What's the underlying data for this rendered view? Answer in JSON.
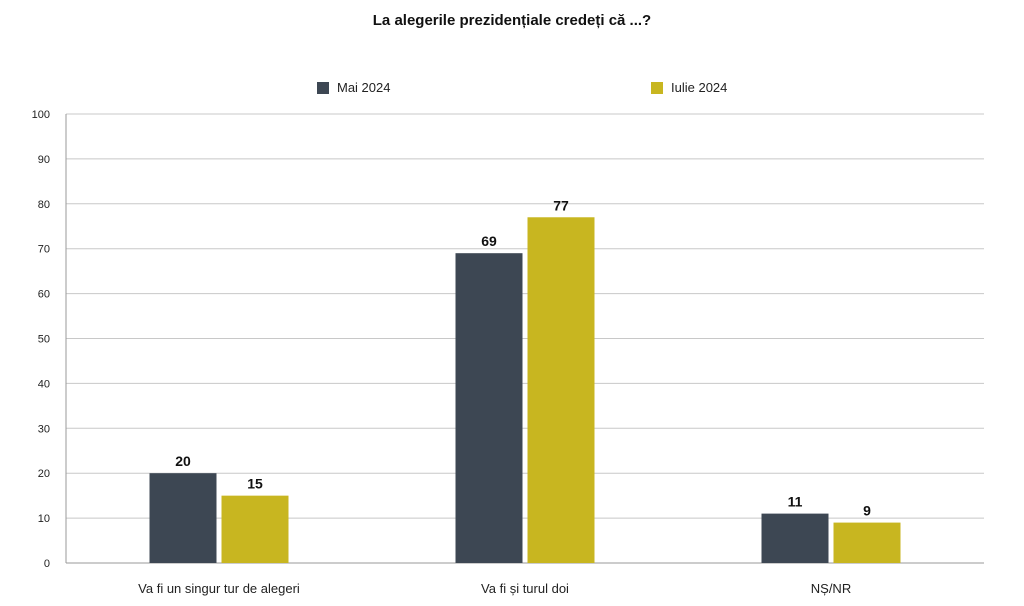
{
  "chart_data": {
    "type": "bar",
    "title": "La alegerile prezidențiale credeți că ...?",
    "categories": [
      "Va fi un singur tur de alegeri",
      "Va fi și turul doi",
      "NȘ/NR"
    ],
    "series": [
      {
        "name": "Mai 2024",
        "color": "#3d4753",
        "values": [
          20,
          69,
          11
        ]
      },
      {
        "name": "Iulie 2024",
        "color": "#c8b620",
        "values": [
          15,
          77,
          9
        ]
      }
    ],
    "ylim": [
      0,
      100
    ],
    "yticks": [
      0,
      10,
      20,
      30,
      40,
      50,
      60,
      70,
      80,
      90,
      100
    ],
    "grid": true,
    "legend_position": "top-center",
    "xlabel": "",
    "ylabel": ""
  }
}
